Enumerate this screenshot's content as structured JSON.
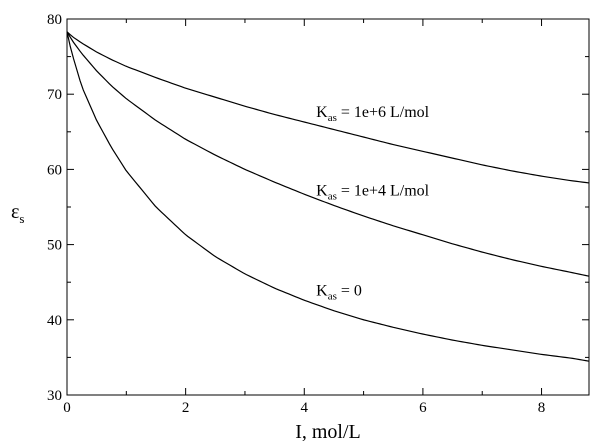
{
  "chart_data": {
    "type": "line",
    "title": "",
    "xlabel": "I, mol/L",
    "ylabel": "ε",
    "ylabel_subscript": "s",
    "xlim": [
      0,
      8.8
    ],
    "ylim": [
      30,
      80
    ],
    "xticks": [
      0,
      2,
      4,
      6,
      8
    ],
    "yticks": [
      30,
      40,
      50,
      60,
      70,
      80
    ],
    "grid": false,
    "legend": "none",
    "line_color": "#000000",
    "series": [
      {
        "x": [
          0,
          0.1,
          0.25,
          0.5,
          0.75,
          1,
          1.5,
          2,
          2.5,
          3,
          3.5,
          4,
          4.5,
          5,
          5.5,
          6,
          6.5,
          7,
          7.5,
          8,
          8.5,
          8.8
        ],
        "values": [
          78.3,
          77.6,
          76.8,
          75.6,
          74.6,
          73.7,
          72.2,
          70.8,
          69.6,
          68.4,
          67.3,
          66.3,
          65.3,
          64.3,
          63.3,
          62.4,
          61.5,
          60.6,
          59.8,
          59.1,
          58.5,
          58.2
        ]
      },
      {
        "x": [
          0,
          0.1,
          0.25,
          0.5,
          0.75,
          1,
          1.5,
          2,
          2.5,
          3,
          3.5,
          4,
          4.5,
          5,
          5.5,
          6,
          6.5,
          7,
          7.5,
          8,
          8.5,
          8.8
        ],
        "values": [
          78.3,
          77.0,
          75.4,
          73.1,
          71.1,
          69.4,
          66.5,
          64.0,
          61.9,
          60.0,
          58.3,
          56.7,
          55.2,
          53.8,
          52.5,
          51.3,
          50.1,
          49.0,
          48.0,
          47.1,
          46.3,
          45.8
        ]
      },
      {
        "x": [
          0,
          0.05,
          0.1,
          0.25,
          0.5,
          0.75,
          1,
          1.5,
          2,
          2.5,
          3,
          3.5,
          4,
          4.5,
          5,
          5.5,
          6,
          6.5,
          7,
          7.5,
          8,
          8.5,
          8.8
        ],
        "values": [
          78.3,
          76.5,
          75.0,
          71.0,
          66.5,
          62.9,
          59.8,
          55.0,
          51.3,
          48.4,
          46.1,
          44.2,
          42.6,
          41.2,
          40.0,
          39.0,
          38.1,
          37.3,
          36.6,
          36.0,
          35.4,
          34.9,
          34.5
        ]
      }
    ],
    "annotations": [
      {
        "main": "K",
        "sub": "as",
        "rest": " = 1e+6  L/mol",
        "x": 4.2,
        "y": 67.0
      },
      {
        "main": "K",
        "sub": "as",
        "rest": " = 1e+4  L/mol",
        "x": 4.2,
        "y": 56.5
      },
      {
        "main": "K",
        "sub": "as",
        "rest": " = 0",
        "x": 4.2,
        "y": 43.2
      }
    ]
  }
}
